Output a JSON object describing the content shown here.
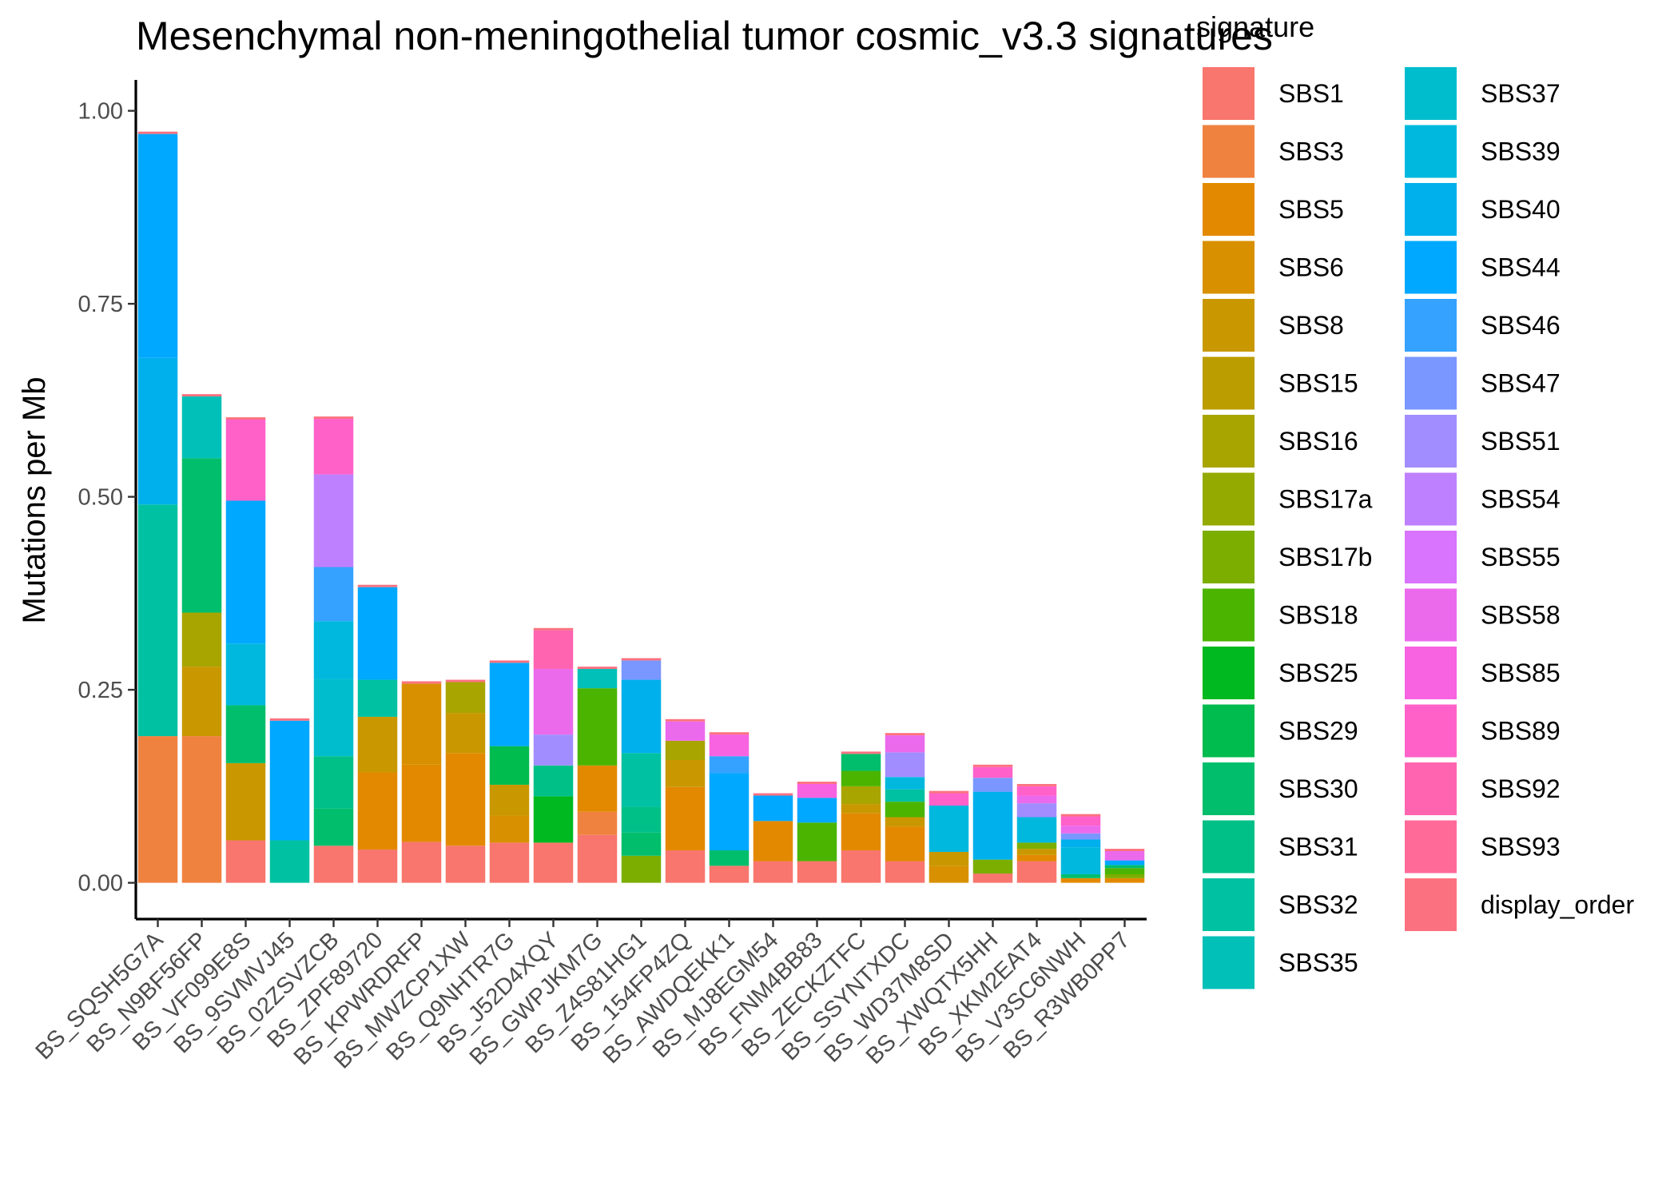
{
  "chart_data": {
    "type": "bar",
    "stacked": true,
    "title": "Mesenchymal non-meningothelial tumor cosmic_v3.3 signatures",
    "xlabel": "",
    "ylabel": "Mutations per Mb",
    "ylim": [
      -0.047,
      1.04
    ],
    "yticks": [
      0.0,
      0.25,
      0.5,
      0.75,
      1.0
    ],
    "ytick_labels": [
      "0.00",
      "0.25",
      "0.50",
      "0.75",
      "1.00"
    ],
    "grid": false,
    "legend": {
      "title": "signature",
      "position": "right",
      "columns": 2
    },
    "categories": [
      "BS_SQSH5G7A",
      "BS_N9BF56FP",
      "BS_VF099E8S",
      "BS_9SVMVJ45",
      "BS_02ZSVZCB",
      "BS_ZPF89720",
      "BS_KPWRDRFP",
      "BS_MWZCP1XW",
      "BS_Q9NHTR7G",
      "BS_J52D4XQY",
      "BS_GWPJKM7G",
      "BS_Z4S81HG1",
      "BS_154FP4ZQ",
      "BS_AWDQEKK1",
      "BS_MJ8EGM54",
      "BS_FNM4BB83",
      "BS_ZECKZTFC",
      "BS_SSYNTXDC",
      "BS_WD37M8SD",
      "BS_XWQTX5HH",
      "BS_XKM2EAT4",
      "BS_V3SC6NWH",
      "BS_R3WB0PP7"
    ],
    "series": [
      {
        "name": "SBS1",
        "color": "#F8766D",
        "values": [
          0,
          0,
          0.055,
          0,
          0.048,
          0.043,
          0.053,
          0.048,
          0.052,
          0.052,
          0.062,
          0,
          0.042,
          0.022,
          0.028,
          0.028,
          0.042,
          0.028,
          0,
          0.012,
          0.028,
          0,
          0
        ]
      },
      {
        "name": "SBS3",
        "color": "#F0823F",
        "values": [
          0.19,
          0.19,
          0,
          0,
          0,
          0,
          0,
          0,
          0,
          0,
          0.03,
          0,
          0,
          0,
          0,
          0,
          0,
          0,
          0,
          0,
          0,
          0,
          0
        ]
      },
      {
        "name": "SBS5",
        "color": "#E38900",
        "values": [
          0,
          0,
          0,
          0,
          0,
          0.1,
          0.1,
          0.12,
          0,
          0,
          0.06,
          0,
          0.082,
          0,
          0.052,
          0,
          0.048,
          0.045,
          0,
          0,
          0.008,
          0.006,
          0.006
        ]
      },
      {
        "name": "SBS6",
        "color": "#D89000",
        "values": [
          0,
          0,
          0,
          0,
          0,
          0,
          0.105,
          0,
          0.035,
          0,
          0,
          0,
          0,
          0,
          0,
          0,
          0,
          0,
          0.022,
          0,
          0,
          0,
          0
        ]
      },
      {
        "name": "SBS8",
        "color": "#C99800",
        "values": [
          0,
          0.09,
          0.1,
          0,
          0,
          0.072,
          0,
          0.052,
          0.04,
          0,
          0,
          0,
          0.035,
          0,
          0,
          0,
          0.012,
          0.012,
          0.018,
          0,
          0.008,
          0,
          0
        ]
      },
      {
        "name": "SBS15",
        "color": "#BB9D00",
        "values": [
          0,
          0,
          0,
          0,
          0,
          0,
          0,
          0,
          0,
          0,
          0,
          0,
          0,
          0,
          0,
          0,
          0,
          0,
          0,
          0,
          0,
          0,
          0
        ]
      },
      {
        "name": "SBS16",
        "color": "#A8A400",
        "values": [
          0,
          0.07,
          0,
          0,
          0,
          0,
          0,
          0.04,
          0,
          0,
          0,
          0,
          0.025,
          0,
          0,
          0,
          0.023,
          0,
          0,
          0,
          0,
          0,
          0
        ]
      },
      {
        "name": "SBS17a",
        "color": "#94AA00",
        "values": [
          0,
          0,
          0,
          0,
          0,
          0,
          0,
          0,
          0,
          0,
          0,
          0,
          0,
          0,
          0,
          0,
          0,
          0,
          0,
          0,
          0,
          0,
          0
        ]
      },
      {
        "name": "SBS17b",
        "color": "#7CAE00",
        "values": [
          0,
          0,
          0,
          0,
          0,
          0,
          0,
          0,
          0,
          0,
          0,
          0.035,
          0,
          0,
          0,
          0,
          0,
          0,
          0,
          0.018,
          0.008,
          0,
          0.005
        ]
      },
      {
        "name": "SBS18",
        "color": "#4AB400",
        "values": [
          0,
          0,
          0,
          0,
          0,
          0,
          0,
          0,
          0,
          0,
          0.1,
          0,
          0,
          0,
          0,
          0.05,
          0.02,
          0.02,
          0,
          0,
          0,
          0,
          0.008
        ]
      },
      {
        "name": "SBS25",
        "color": "#00B81F",
        "values": [
          0,
          0,
          0,
          0,
          0,
          0,
          0,
          0,
          0,
          0.06,
          0,
          0,
          0,
          0,
          0,
          0,
          0,
          0,
          0,
          0,
          0,
          0,
          0
        ]
      },
      {
        "name": "SBS29",
        "color": "#00BB4E",
        "values": [
          0,
          0,
          0,
          0,
          0,
          0,
          0,
          0,
          0.05,
          0,
          0,
          0,
          0,
          0,
          0,
          0,
          0,
          0,
          0,
          0,
          0,
          0,
          0
        ]
      },
      {
        "name": "SBS30",
        "color": "#00BE6C",
        "values": [
          0,
          0.2,
          0.075,
          0,
          0.048,
          0,
          0,
          0,
          0,
          0,
          0,
          0.03,
          0,
          0.02,
          0,
          0,
          0.022,
          0,
          0,
          0,
          0,
          0.005,
          0.004
        ]
      },
      {
        "name": "SBS31",
        "color": "#00C088",
        "values": [
          0,
          0,
          0,
          0,
          0.068,
          0,
          0,
          0,
          0,
          0.04,
          0,
          0.033,
          0,
          0,
          0,
          0,
          0,
          0,
          0,
          0,
          0,
          0,
          0
        ]
      },
      {
        "name": "SBS32",
        "color": "#00C1A1",
        "values": [
          0.3,
          0,
          0,
          0.055,
          0,
          0.048,
          0,
          0,
          0,
          0,
          0,
          0.07,
          0,
          0,
          0,
          0,
          0,
          0.016,
          0,
          0,
          0,
          0,
          0
        ]
      },
      {
        "name": "SBS35",
        "color": "#00C0B8",
        "values": [
          0,
          0.08,
          0,
          0,
          0,
          0,
          0,
          0,
          0,
          0,
          0.025,
          0,
          0,
          0,
          0,
          0,
          0,
          0,
          0,
          0,
          0,
          0,
          0
        ]
      },
      {
        "name": "SBS37",
        "color": "#00BDCD",
        "values": [
          0,
          0,
          0,
          0,
          0.1,
          0,
          0,
          0,
          0,
          0,
          0,
          0,
          0,
          0,
          0,
          0,
          0,
          0,
          0,
          0,
          0,
          0,
          0
        ]
      },
      {
        "name": "SBS39",
        "color": "#00B8DE",
        "values": [
          0,
          0,
          0.08,
          0,
          0.075,
          0,
          0,
          0,
          0,
          0,
          0,
          0,
          0,
          0,
          0,
          0,
          0,
          0.016,
          0.06,
          0,
          0.033,
          0.035,
          0
        ]
      },
      {
        "name": "SBS40",
        "color": "#00B0EC",
        "values": [
          0.19,
          0,
          0,
          0,
          0,
          0,
          0,
          0,
          0,
          0,
          0,
          0.095,
          0,
          0,
          0,
          0,
          0,
          0,
          0,
          0.088,
          0,
          0.01,
          0
        ]
      },
      {
        "name": "SBS44",
        "color": "#00A8FF",
        "values": [
          0.29,
          0,
          0.185,
          0.155,
          0,
          0.12,
          0,
          0,
          0.108,
          0,
          0,
          0,
          0,
          0.1,
          0.033,
          0.032,
          0,
          0,
          0,
          0,
          0,
          0,
          0.006
        ]
      },
      {
        "name": "SBS46",
        "color": "#35A2FF",
        "values": [
          0,
          0,
          0,
          0,
          0.07,
          0,
          0,
          0,
          0,
          0,
          0,
          0,
          0,
          0.022,
          0,
          0,
          0,
          0,
          0,
          0,
          0,
          0,
          0
        ]
      },
      {
        "name": "SBS47",
        "color": "#7A97FF",
        "values": [
          0,
          0,
          0,
          0,
          0,
          0,
          0,
          0,
          0,
          0,
          0,
          0.025,
          0,
          0,
          0,
          0,
          0,
          0,
          0,
          0.018,
          0,
          0.008,
          0
        ]
      },
      {
        "name": "SBS51",
        "color": "#A18DFF",
        "values": [
          0,
          0,
          0,
          0,
          0,
          0,
          0,
          0,
          0,
          0.04,
          0,
          0,
          0,
          0,
          0,
          0,
          0,
          0.032,
          0,
          0,
          0.018,
          0,
          0
        ]
      },
      {
        "name": "SBS54",
        "color": "#BF80FF",
        "values": [
          0,
          0,
          0,
          0,
          0.12,
          0,
          0,
          0,
          0,
          0,
          0,
          0,
          0,
          0,
          0,
          0,
          0,
          0,
          0,
          0,
          0,
          0,
          0
        ]
      },
      {
        "name": "SBS55",
        "color": "#D874FD",
        "values": [
          0,
          0,
          0,
          0,
          0,
          0,
          0,
          0,
          0,
          0,
          0,
          0,
          0,
          0,
          0,
          0,
          0,
          0,
          0,
          0,
          0,
          0,
          0
        ]
      },
      {
        "name": "SBS58",
        "color": "#EB6AEC",
        "values": [
          0,
          0,
          0,
          0,
          0,
          0,
          0,
          0,
          0,
          0.085,
          0,
          0,
          0.025,
          0,
          0,
          0,
          0,
          0.022,
          0,
          0,
          0.01,
          0.01,
          0.012
        ]
      },
      {
        "name": "SBS85",
        "color": "#F763E0",
        "values": [
          0,
          0,
          0,
          0,
          0,
          0,
          0,
          0,
          0,
          0,
          0,
          0,
          0,
          0.028,
          0,
          0.018,
          0,
          0,
          0,
          0,
          0,
          0,
          0
        ]
      },
      {
        "name": "SBS89",
        "color": "#FF61C9",
        "values": [
          0,
          0,
          0.105,
          0,
          0.072,
          0,
          0,
          0,
          0,
          0,
          0,
          0,
          0,
          0,
          0,
          0,
          0,
          0,
          0.016,
          0.014,
          0.012,
          0.012,
          0
        ]
      },
      {
        "name": "SBS92",
        "color": "#FF64B0",
        "values": [
          0,
          0,
          0,
          0,
          0,
          0,
          0,
          0,
          0,
          0.05,
          0,
          0,
          0,
          0,
          0,
          0,
          0,
          0,
          0,
          0,
          0,
          0,
          0
        ]
      },
      {
        "name": "SBS93",
        "color": "#FF6A98",
        "values": [
          0,
          0,
          0,
          0,
          0,
          0,
          0,
          0,
          0,
          0,
          0,
          0,
          0,
          0,
          0,
          0,
          0,
          0,
          0,
          0,
          0,
          0,
          0
        ]
      },
      {
        "name": "display_order",
        "color": "#FC717F",
        "values": [
          0.003,
          0.003,
          0.003,
          0.003,
          0.003,
          0.003,
          0.003,
          0.003,
          0.003,
          0.003,
          0.003,
          0.003,
          0.003,
          0.003,
          0.003,
          0.003,
          0.003,
          0.003,
          0.003,
          0.003,
          0.003,
          0.003,
          0.003
        ]
      }
    ]
  }
}
